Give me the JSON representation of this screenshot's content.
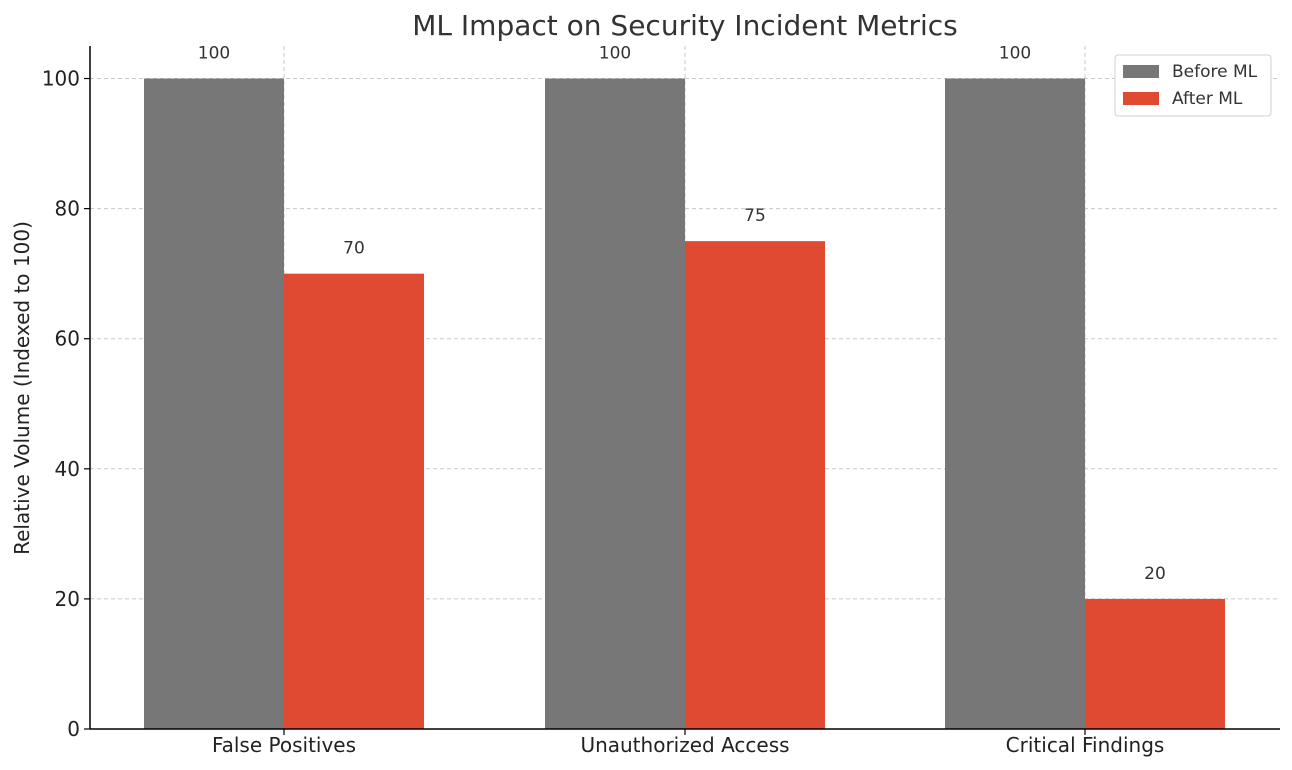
{
  "chart_data": {
    "type": "bar",
    "title": "ML Impact on Security Incident Metrics",
    "xlabel": "",
    "ylabel": "Relative Volume (Indexed to 100)",
    "categories": [
      "False Positives",
      "Unauthorized Access",
      "Critical Findings"
    ],
    "series": [
      {
        "name": "Before ML",
        "values": [
          100,
          100,
          100
        ],
        "color": "#777777"
      },
      {
        "name": "After ML",
        "values": [
          70,
          75,
          20
        ],
        "color": "#e04a33"
      }
    ],
    "yticks": [
      0,
      20,
      40,
      60,
      80,
      100
    ],
    "ylim": [
      0,
      105
    ],
    "grid": true,
    "legend_position": "top-right"
  }
}
